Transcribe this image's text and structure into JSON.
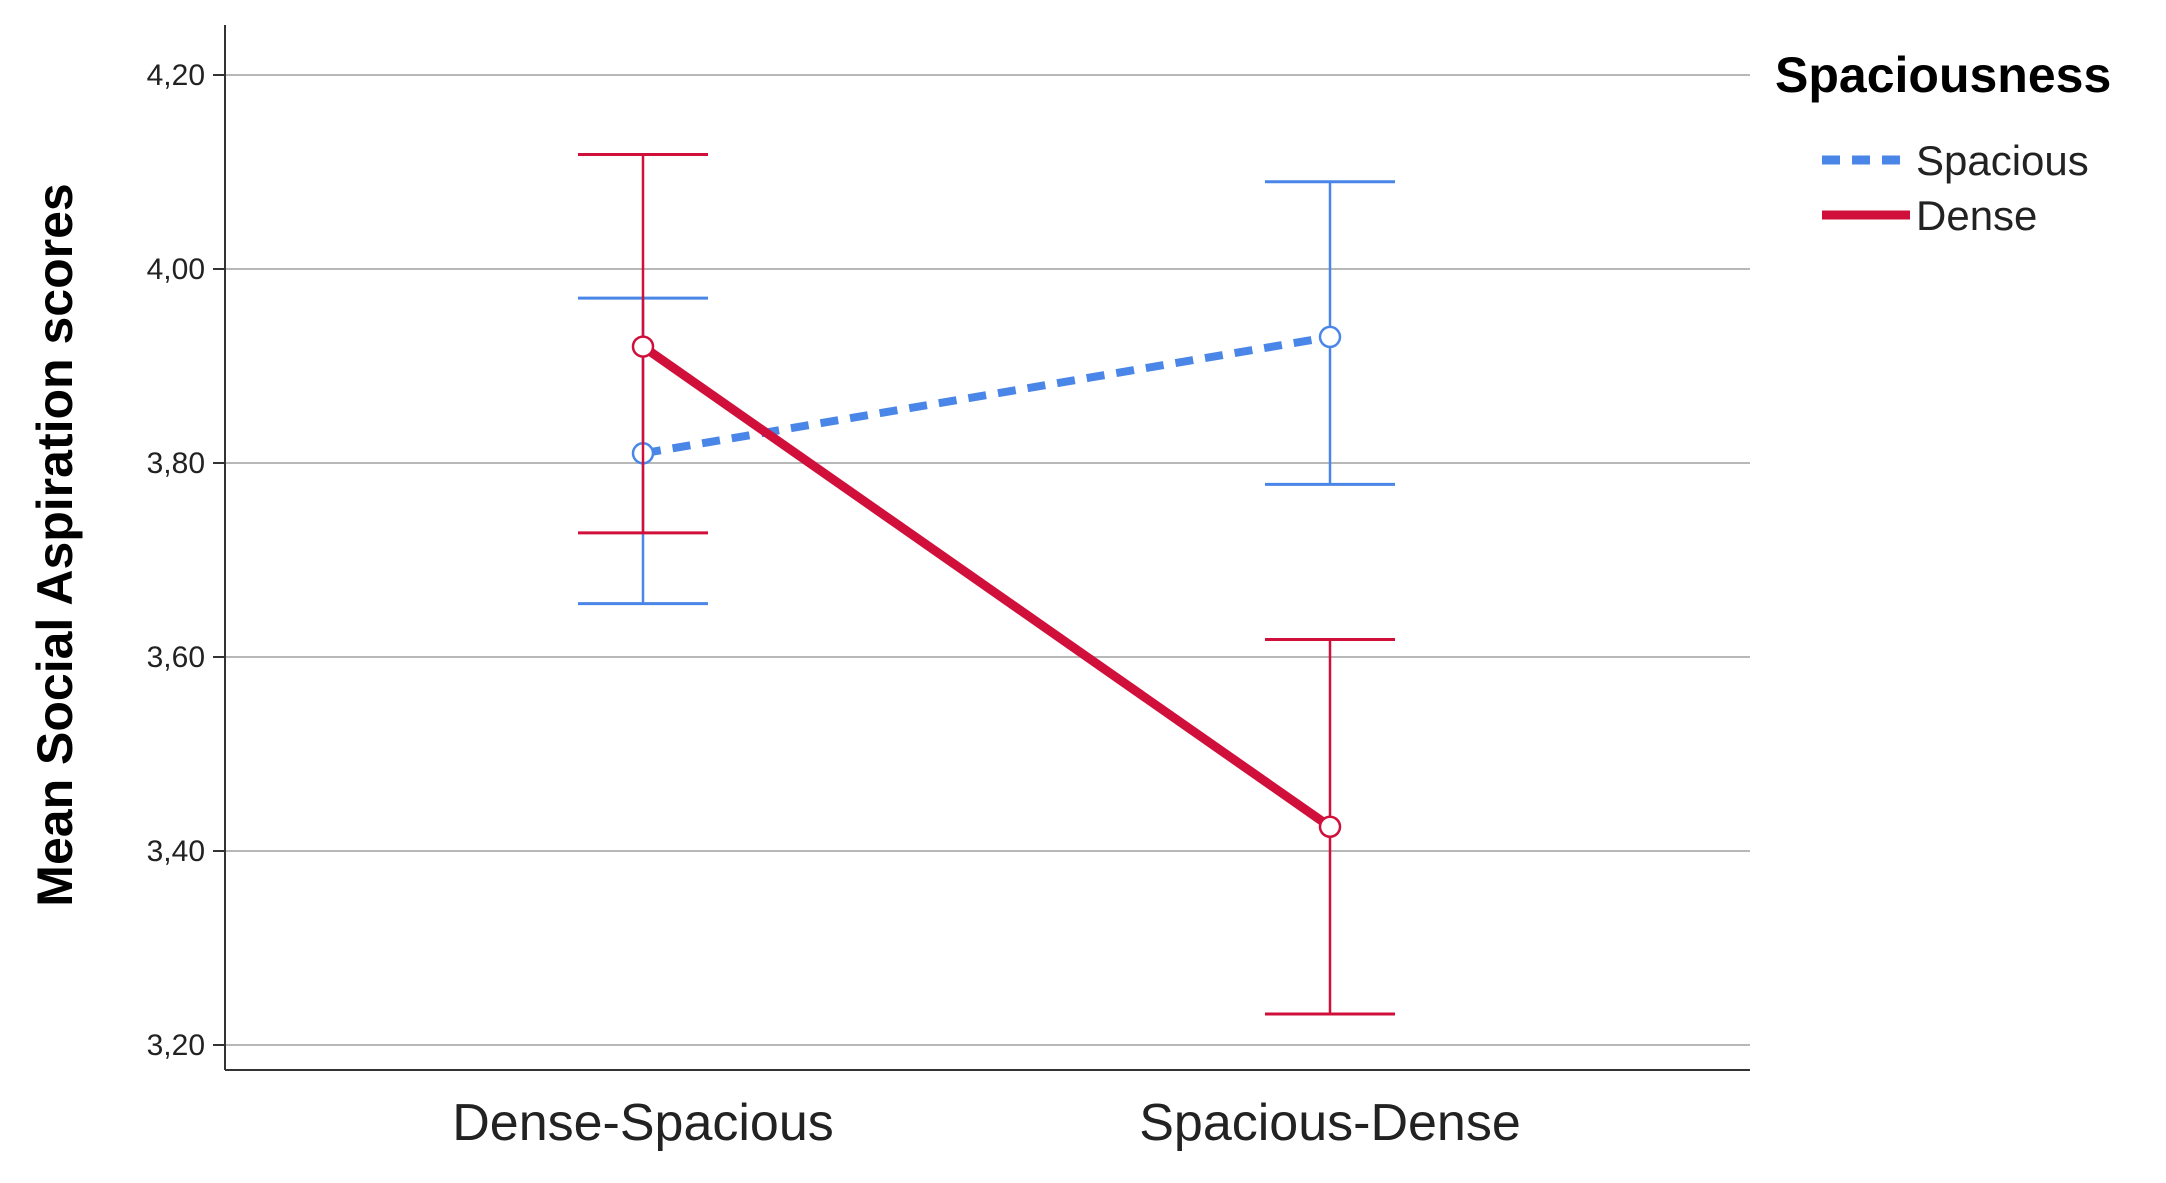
{
  "chart_data": {
    "type": "line",
    "ylabel": "Mean Social Aspiration scores",
    "xlabel": "",
    "categories": [
      "Dense-Spacious",
      "Spacious-Dense"
    ],
    "ylim": [
      3.2,
      4.2
    ],
    "yticks": [
      "3,20",
      "3,40",
      "3,60",
      "3,80",
      "4,00",
      "4,20"
    ],
    "ytick_values": [
      3.2,
      3.4,
      3.6,
      3.8,
      4.0,
      4.2
    ],
    "grid": true,
    "legend": {
      "title": "Spaciousness",
      "placement": "top-right"
    },
    "series": [
      {
        "name": "Spacious",
        "color": "#4a86e8",
        "dashed": true,
        "values": [
          3.81,
          3.93
        ],
        "ci_low": [
          3.655,
          3.778
        ],
        "ci_high": [
          3.97,
          4.09
        ]
      },
      {
        "name": "Dense",
        "color": "#d0103a",
        "dashed": false,
        "values": [
          3.92,
          3.425
        ],
        "ci_low": [
          3.728,
          3.232
        ],
        "ci_high": [
          4.118,
          3.618
        ]
      }
    ]
  }
}
